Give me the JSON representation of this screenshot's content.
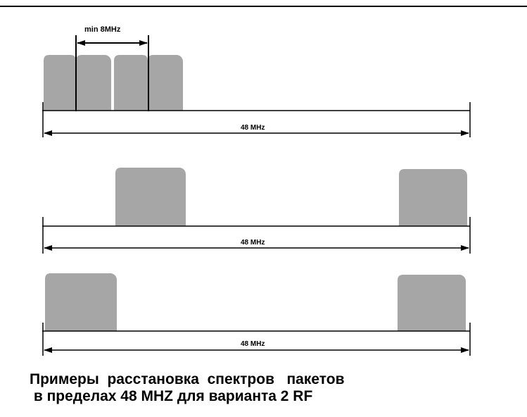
{
  "colors": {
    "spectrum_fill": "#a6a6a6",
    "line": "#000000",
    "background": "#ffffff"
  },
  "min_spacing_label": "min 8MHz",
  "bandwidth_label_1": "48 MHz",
  "bandwidth_label_2": "48 MHz",
  "bandwidth_label_3": "48 MHz",
  "caption_line1": "Примеры  расстановка  спектров   пакетов",
  "caption_line2": " в пределах 48 MHZ для варианта 2 RF"
}
